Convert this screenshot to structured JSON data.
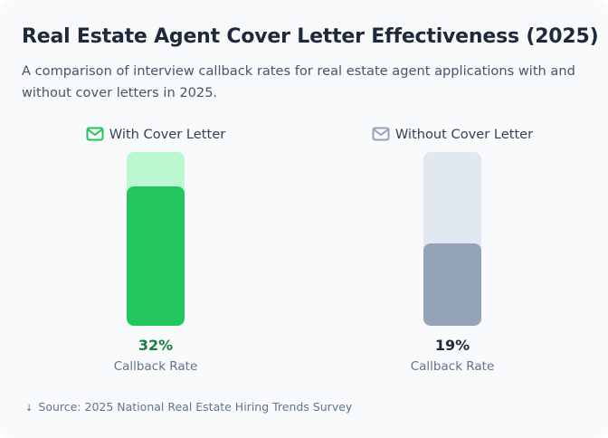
{
  "title": "Real Estate Agent Cover Letter Effectiveness (2025)",
  "subtitle": "A comparison of interview callback rates for real estate agent applications with and without cover letters in 2025.",
  "source": "Source: 2025 National Real Estate Hiring Trends Survey",
  "chart_data": {
    "type": "bar",
    "categories": [
      "With Cover Letter",
      "Without Cover Letter"
    ],
    "values": [
      32,
      19
    ],
    "value_labels": [
      "32%",
      "19%"
    ],
    "sublabel": "Callback Rate",
    "ylim": [
      0,
      40
    ],
    "colors": {
      "with": "#22c55e",
      "with_track": "#bbf7d0",
      "with_text": "#15803d",
      "without": "#94a3b8",
      "without_track": "#e2e8f0",
      "without_text": "#1e293b"
    },
    "icons": [
      "envelope-icon",
      "envelope-icon"
    ]
  }
}
